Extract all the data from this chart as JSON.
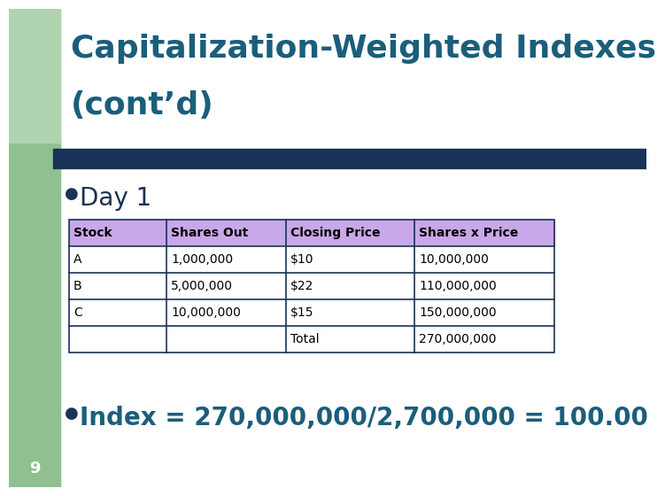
{
  "title_line1": "Capitalization-Weighted Indexes",
  "title_line2": "(cont’d)",
  "title_color": "#1b5e7b",
  "title_fontsize": 26,
  "bg_color": "#ffffff",
  "accent_bar_color": "#1a3356",
  "bullet_color": "#1a3356",
  "bullet_text": "Day 1",
  "bullet_fontsize": 20,
  "index_text": "Index = 270,000,000/2,700,000 = 100.00",
  "index_fontsize": 20,
  "slide_number": "9",
  "table_header": [
    "Stock",
    "Shares Out",
    "Closing Price",
    "Shares x Price"
  ],
  "table_rows": [
    [
      "A",
      "1,000,000",
      "$10",
      "10,000,000"
    ],
    [
      "B",
      "5,000,000",
      "$22",
      "110,000,000"
    ],
    [
      "C",
      "10,000,000",
      "$15",
      "150,000,000"
    ],
    [
      "",
      "",
      "Total",
      "270,000,000"
    ]
  ],
  "table_header_bg": "#c8a8e8",
  "table_row_bg": "#ffffff",
  "table_border_color": "#1a3356",
  "table_text_color": "#000000",
  "table_header_text_color": "#000000",
  "left_bar_color": "#90c090",
  "left_bar_top_color": "#b0d4b0",
  "left_bar_width": 58
}
